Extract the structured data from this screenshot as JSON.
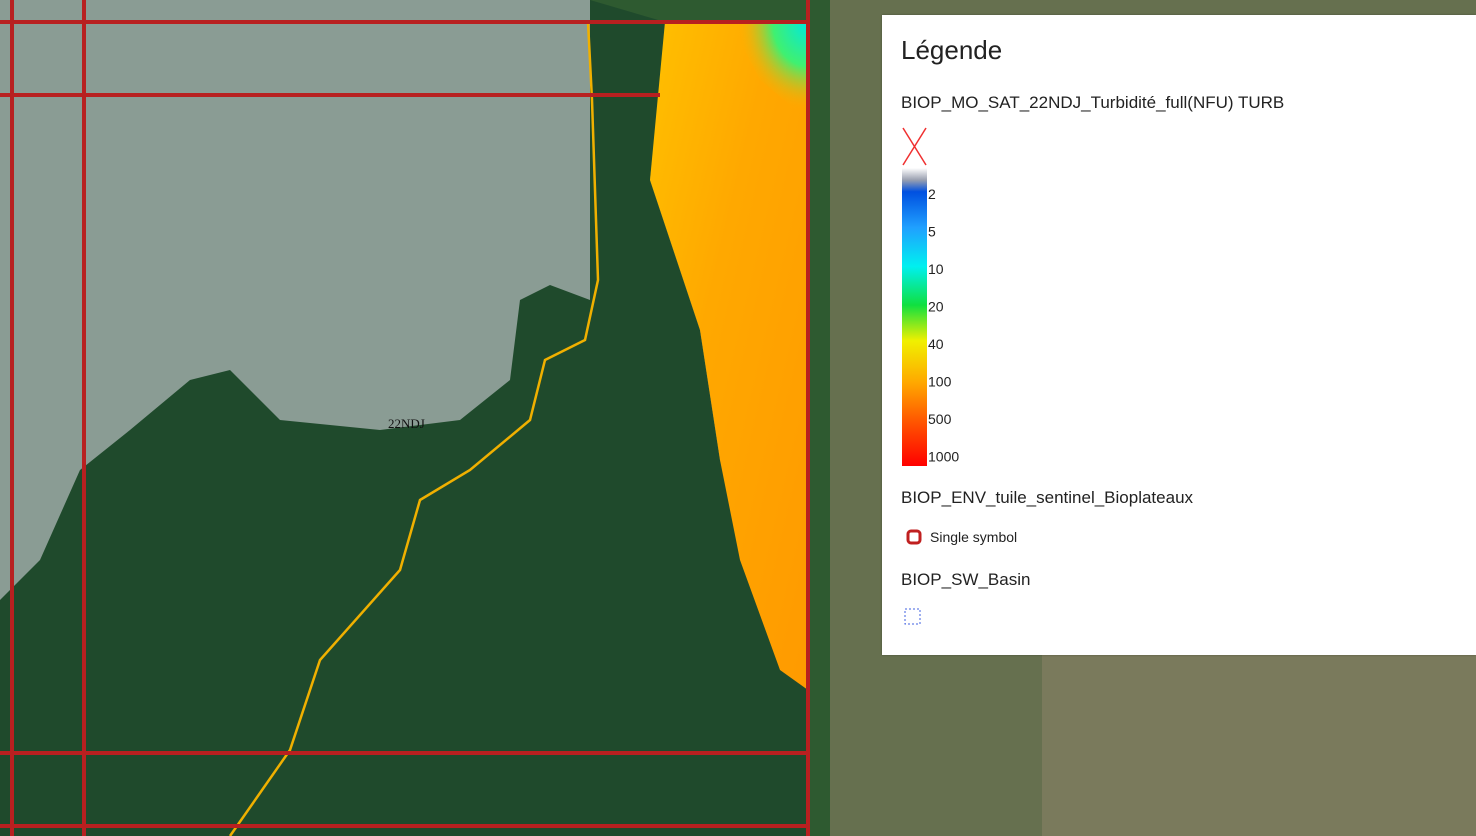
{
  "map": {
    "tile_label": "22NDJ"
  },
  "legend": {
    "title": "Légende",
    "layers": [
      {
        "name": "BIOP_MO_SAT_22NDJ_Turbidité_full(NFU) TURB",
        "ramp_labels": [
          2,
          5,
          10,
          20,
          40,
          100,
          500,
          1000
        ]
      },
      {
        "name": "BIOP_ENV_tuile_sentinel_Bioplateaux",
        "symbol_label": "Single symbol"
      },
      {
        "name": "BIOP_SW_Basin"
      }
    ]
  }
}
